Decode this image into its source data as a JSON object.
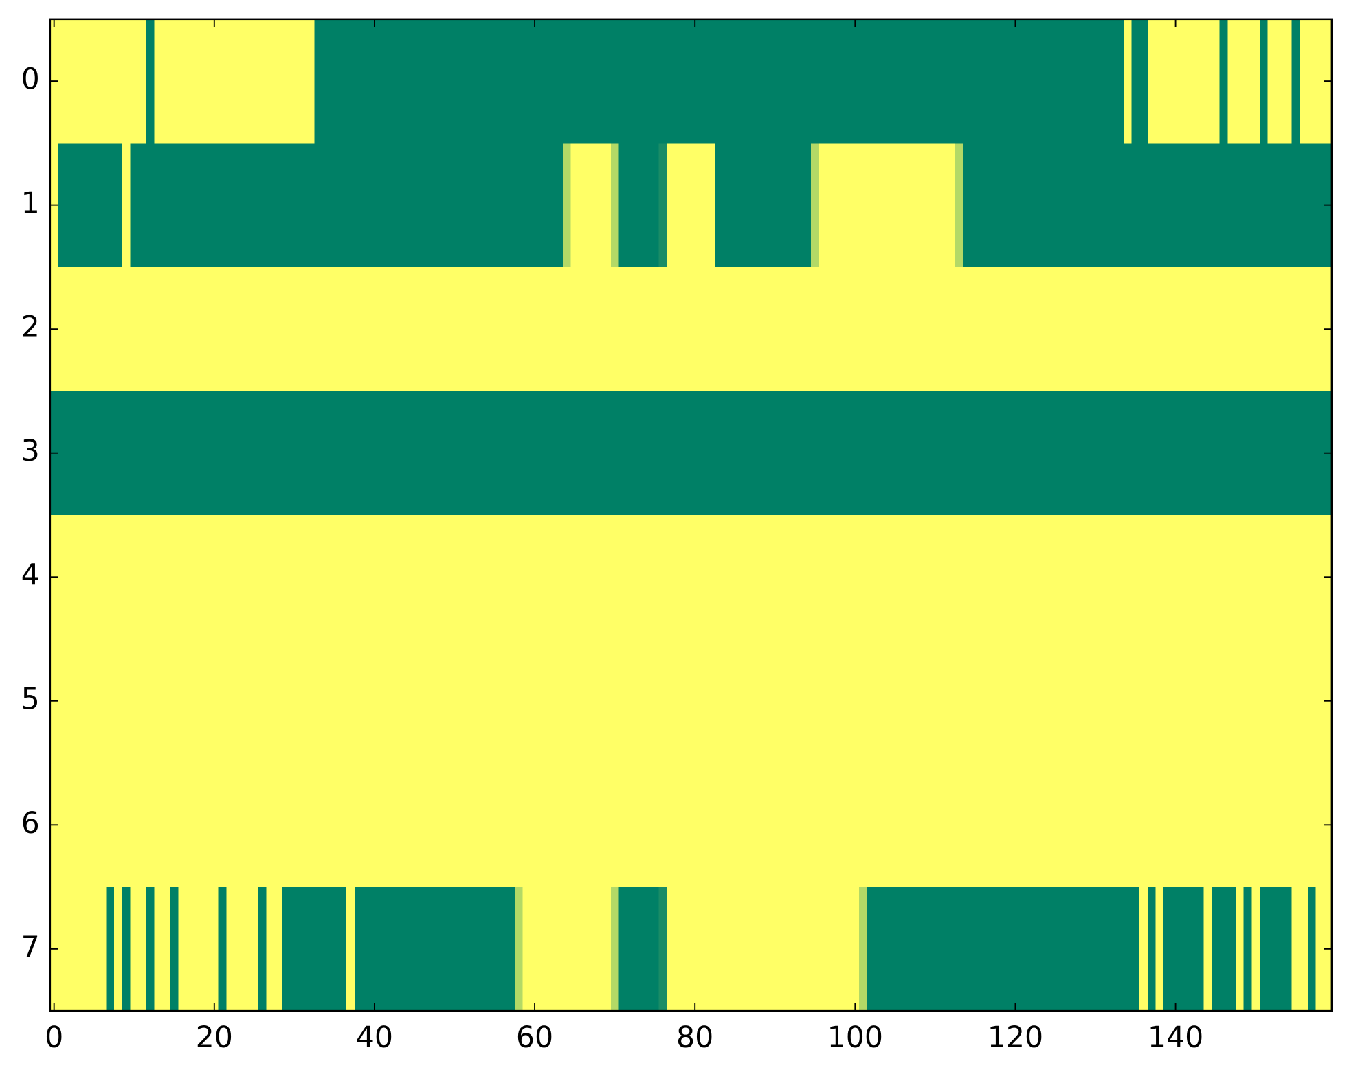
{
  "chart_data": {
    "type": "heatmap",
    "cmap": "summer",
    "xlim": [
      -0.5,
      159.5
    ],
    "ylim": [
      7.5,
      -0.5
    ],
    "xticks": [
      0,
      20,
      40,
      60,
      80,
      100,
      120,
      140
    ],
    "yticks": [
      0,
      1,
      2,
      3,
      4,
      5,
      6,
      7
    ],
    "z": [
      [
        1,
        1,
        1,
        1,
        1,
        1,
        1,
        1,
        1,
        1,
        1,
        1,
        0,
        1,
        1,
        1,
        1,
        1,
        1,
        1,
        1,
        1,
        1,
        1,
        1,
        1,
        1,
        1,
        1,
        1,
        1,
        1,
        1,
        0,
        0,
        0,
        0,
        0,
        0,
        0,
        0,
        0,
        0,
        0,
        0,
        0,
        0,
        0,
        0,
        0,
        0,
        0,
        0,
        0,
        0,
        0,
        0,
        0,
        0,
        0,
        0,
        0,
        0,
        0,
        0,
        0,
        0,
        0,
        0,
        0,
        0,
        0,
        0,
        0,
        0,
        0,
        0,
        0,
        0,
        0,
        0,
        0,
        0,
        0,
        0,
        0,
        0,
        0,
        0,
        0,
        0,
        0,
        0,
        0,
        0,
        0,
        0,
        0,
        0,
        0,
        0,
        0,
        0,
        0,
        0,
        0,
        0,
        0,
        0,
        0,
        0,
        0,
        0,
        0,
        0,
        0,
        0,
        0,
        0,
        0,
        0,
        0,
        0,
        0,
        0,
        0,
        0,
        0,
        0,
        0,
        0,
        0,
        0,
        0,
        1,
        0,
        0,
        1,
        1,
        1,
        1,
        1,
        1,
        1,
        1,
        1,
        0,
        1,
        1,
        1,
        1,
        0,
        1,
        1,
        1,
        0,
        1,
        1,
        1,
        1
      ],
      [
        1,
        0,
        0,
        0,
        0,
        0,
        0,
        0,
        0,
        1,
        0,
        0,
        0,
        0,
        0,
        0,
        0,
        0,
        0,
        0,
        0,
        0,
        0,
        0,
        0,
        0,
        0,
        0,
        0,
        0,
        0,
        0,
        0,
        0,
        0,
        0,
        0,
        0,
        0,
        0,
        0,
        0,
        0,
        0,
        0,
        0,
        0,
        0,
        0,
        0,
        0,
        0,
        0,
        0,
        0,
        0,
        0,
        0,
        0,
        0,
        0,
        0,
        0,
        0,
        0.7,
        1,
        1,
        1,
        1,
        1,
        0.7,
        0,
        0,
        0,
        0,
        0,
        0.1,
        1,
        1,
        1,
        1,
        1,
        1,
        0,
        0,
        0,
        0,
        0,
        0,
        0,
        0,
        0,
        0,
        0,
        0,
        0.7,
        1,
        1,
        1,
        1,
        1,
        1,
        1,
        1,
        1,
        1,
        1,
        1,
        1,
        1,
        1,
        1,
        1,
        0.7,
        0,
        0,
        0,
        0,
        0,
        0,
        0,
        0,
        0,
        0,
        0,
        0,
        0,
        0,
        0,
        0,
        0,
        0,
        0,
        0,
        0,
        0,
        0,
        0,
        0,
        0,
        0,
        0,
        0,
        0,
        0,
        0,
        0,
        0,
        0,
        0,
        0,
        0,
        0,
        0,
        0,
        0,
        0,
        0,
        0,
        0
      ],
      [
        1,
        1,
        1,
        1,
        1,
        1,
        1,
        1,
        1,
        1,
        1,
        1,
        1,
        1,
        1,
        1,
        1,
        1,
        1,
        1,
        1,
        1,
        1,
        1,
        1,
        1,
        1,
        1,
        1,
        1,
        1,
        1,
        1,
        1,
        1,
        1,
        1,
        1,
        1,
        1,
        1,
        1,
        1,
        1,
        1,
        1,
        1,
        1,
        1,
        1,
        1,
        1,
        1,
        1,
        1,
        1,
        1,
        1,
        1,
        1,
        1,
        1,
        1,
        1,
        1,
        1,
        1,
        1,
        1,
        1,
        1,
        1,
        1,
        1,
        1,
        1,
        1,
        1,
        1,
        1,
        1,
        1,
        1,
        1,
        1,
        1,
        1,
        1,
        1,
        1,
        1,
        1,
        1,
        1,
        1,
        1,
        1,
        1,
        1,
        1,
        1,
        1,
        1,
        1,
        1,
        1,
        1,
        1,
        1,
        1,
        1,
        1,
        1,
        1,
        1,
        1,
        1,
        1,
        1,
        1,
        1,
        1,
        1,
        1,
        1,
        1,
        1,
        1,
        1,
        1,
        1,
        1,
        1,
        1,
        1,
        1,
        1,
        1,
        1,
        1,
        1,
        1,
        1,
        1,
        1,
        1,
        1,
        1,
        1,
        1,
        1,
        1,
        1,
        1,
        1,
        1,
        1,
        1,
        1,
        1
      ],
      [
        0,
        0,
        0,
        0,
        0,
        0,
        0,
        0,
        0,
        0,
        0,
        0,
        0,
        0,
        0,
        0,
        0,
        0,
        0,
        0,
        0,
        0,
        0,
        0,
        0,
        0,
        0,
        0,
        0,
        0,
        0,
        0,
        0,
        0,
        0,
        0,
        0,
        0,
        0,
        0,
        0,
        0,
        0,
        0,
        0,
        0,
        0,
        0,
        0,
        0,
        0,
        0,
        0,
        0,
        0,
        0,
        0,
        0,
        0,
        0,
        0,
        0,
        0,
        0,
        0,
        0,
        0,
        0,
        0,
        0,
        0,
        0,
        0,
        0,
        0,
        0,
        0,
        0,
        0,
        0,
        0,
        0,
        0,
        0,
        0,
        0,
        0,
        0,
        0,
        0,
        0,
        0,
        0,
        0,
        0,
        0,
        0,
        0,
        0,
        0,
        0,
        0,
        0,
        0,
        0,
        0,
        0,
        0,
        0,
        0,
        0,
        0,
        0,
        0,
        0,
        0,
        0,
        0,
        0,
        0,
        0,
        0,
        0,
        0,
        0,
        0,
        0,
        0,
        0,
        0,
        0,
        0,
        0,
        0,
        0,
        0,
        0,
        0,
        0,
        0,
        0,
        0,
        0,
        0,
        0,
        0,
        0,
        0,
        0,
        0,
        0,
        0,
        0,
        0,
        0,
        0,
        0,
        0,
        0,
        0
      ],
      [
        1,
        1,
        1,
        1,
        1,
        1,
        1,
        1,
        1,
        1,
        1,
        1,
        1,
        1,
        1,
        1,
        1,
        1,
        1,
        1,
        1,
        1,
        1,
        1,
        1,
        1,
        1,
        1,
        1,
        1,
        1,
        1,
        1,
        1,
        1,
        1,
        1,
        1,
        1,
        1,
        1,
        1,
        1,
        1,
        1,
        1,
        1,
        1,
        1,
        1,
        1,
        1,
        1,
        1,
        1,
        1,
        1,
        1,
        1,
        1,
        1,
        1,
        1,
        1,
        1,
        1,
        1,
        1,
        1,
        1,
        1,
        1,
        1,
        1,
        1,
        1,
        1,
        1,
        1,
        1,
        1,
        1,
        1,
        1,
        1,
        1,
        1,
        1,
        1,
        1,
        1,
        1,
        1,
        1,
        1,
        1,
        1,
        1,
        1,
        1,
        1,
        1,
        1,
        1,
        1,
        1,
        1,
        1,
        1,
        1,
        1,
        1,
        1,
        1,
        1,
        1,
        1,
        1,
        1,
        1,
        1,
        1,
        1,
        1,
        1,
        1,
        1,
        1,
        1,
        1,
        1,
        1,
        1,
        1,
        1,
        1,
        1,
        1,
        1,
        1,
        1,
        1,
        1,
        1,
        1,
        1,
        1,
        1,
        1,
        1,
        1,
        1,
        1,
        1,
        1,
        1,
        1,
        1,
        1,
        1
      ],
      [
        1,
        1,
        1,
        1,
        1,
        1,
        1,
        1,
        1,
        1,
        1,
        1,
        1,
        1,
        1,
        1,
        1,
        1,
        1,
        1,
        1,
        1,
        1,
        1,
        1,
        1,
        1,
        1,
        1,
        1,
        1,
        1,
        1,
        1,
        1,
        1,
        1,
        1,
        1,
        1,
        1,
        1,
        1,
        1,
        1,
        1,
        1,
        1,
        1,
        1,
        1,
        1,
        1,
        1,
        1,
        1,
        1,
        1,
        1,
        1,
        1,
        1,
        1,
        1,
        1,
        1,
        1,
        1,
        1,
        1,
        1,
        1,
        1,
        1,
        1,
        1,
        1,
        1,
        1,
        1,
        1,
        1,
        1,
        1,
        1,
        1,
        1,
        1,
        1,
        1,
        1,
        1,
        1,
        1,
        1,
        1,
        1,
        1,
        1,
        1,
        1,
        1,
        1,
        1,
        1,
        1,
        1,
        1,
        1,
        1,
        1,
        1,
        1,
        1,
        1,
        1,
        1,
        1,
        1,
        1,
        1,
        1,
        1,
        1,
        1,
        1,
        1,
        1,
        1,
        1,
        1,
        1,
        1,
        1,
        1,
        1,
        1,
        1,
        1,
        1,
        1,
        1,
        1,
        1,
        1,
        1,
        1,
        1,
        1,
        1,
        1,
        1,
        1,
        1,
        1,
        1,
        1,
        1,
        1,
        1
      ],
      [
        1,
        1,
        1,
        1,
        1,
        1,
        1,
        1,
        1,
        1,
        1,
        1,
        1,
        1,
        1,
        1,
        1,
        1,
        1,
        1,
        1,
        1,
        1,
        1,
        1,
        1,
        1,
        1,
        1,
        1,
        1,
        1,
        1,
        1,
        1,
        1,
        1,
        1,
        1,
        1,
        1,
        1,
        1,
        1,
        1,
        1,
        1,
        1,
        1,
        1,
        1,
        1,
        1,
        1,
        1,
        1,
        1,
        1,
        1,
        1,
        1,
        1,
        1,
        1,
        1,
        1,
        1,
        1,
        1,
        1,
        1,
        1,
        1,
        1,
        1,
        1,
        1,
        1,
        1,
        1,
        1,
        1,
        1,
        1,
        1,
        1,
        1,
        1,
        1,
        1,
        1,
        1,
        1,
        1,
        1,
        1,
        1,
        1,
        1,
        1,
        1,
        1,
        1,
        1,
        1,
        1,
        1,
        1,
        1,
        1,
        1,
        1,
        1,
        1,
        1,
        1,
        1,
        1,
        1,
        1,
        1,
        1,
        1,
        1,
        1,
        1,
        1,
        1,
        1,
        1,
        1,
        1,
        1,
        1,
        1,
        1,
        1,
        1,
        1,
        1,
        1,
        1,
        1,
        1,
        1,
        1,
        1,
        1,
        1,
        1,
        1,
        1,
        1,
        1,
        1,
        1,
        1,
        1,
        1,
        1
      ],
      [
        1,
        1,
        1,
        1,
        1,
        1,
        1,
        0,
        1,
        0,
        1,
        1,
        0,
        1,
        1,
        0,
        1,
        1,
        1,
        1,
        1,
        0,
        1,
        1,
        1,
        1,
        0,
        1,
        1,
        0,
        0,
        0,
        0,
        0,
        0,
        0,
        0,
        1,
        0,
        0,
        0,
        0,
        0,
        0,
        0,
        0,
        0,
        0,
        0,
        0,
        0,
        0,
        0,
        0,
        0,
        0,
        0,
        0,
        0.7,
        1,
        1,
        1,
        1,
        1,
        1,
        1,
        1,
        1,
        1,
        1,
        0.7,
        0,
        0,
        0,
        0,
        0,
        0.1,
        1,
        1,
        1,
        1,
        1,
        1,
        1,
        1,
        1,
        1,
        1,
        1,
        1,
        1,
        1,
        1,
        1,
        1,
        1,
        1,
        1,
        1,
        1,
        1,
        0.7,
        0,
        0,
        0,
        0,
        0,
        0,
        0,
        0,
        0,
        0,
        0,
        0,
        0,
        0,
        0,
        0,
        0,
        0,
        0,
        0,
        0,
        0,
        0,
        0,
        0,
        0,
        0,
        0,
        0,
        0,
        0,
        0,
        0,
        0,
        1,
        0,
        1,
        0,
        0,
        0,
        0,
        0,
        1,
        0,
        0,
        0,
        1,
        0,
        1,
        0,
        0,
        0,
        0,
        1,
        1,
        0,
        1,
        1
      ]
    ]
  }
}
